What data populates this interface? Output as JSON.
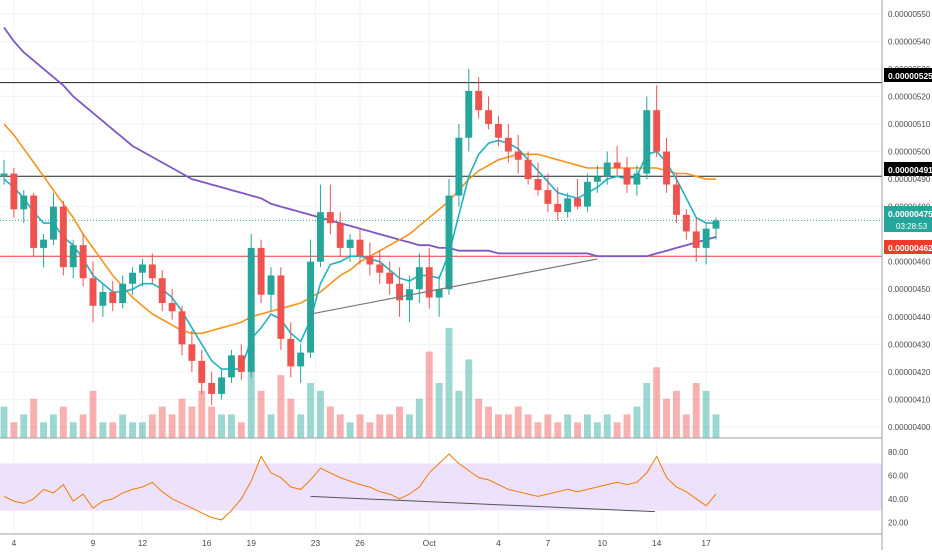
{
  "colors": {
    "bull": "#26a69a",
    "bear": "#ef5350",
    "ema_fast": "#1fb3c2",
    "ma_mid": "#f7931a",
    "ma_slow": "#7e57c2",
    "rsi_line": "#f57c00",
    "rsi_band": "#ede1fb",
    "hline": "#222222",
    "support_line": "#e53935",
    "price_dotted": "#26a69a",
    "trendline": "#777777"
  },
  "price_axis": {
    "ticks": [
      "0.00000550",
      "0.00000540",
      "0.00000530",
      "0.00000520",
      "0.00000510",
      "0.00000500",
      "0.00000490",
      "0.00000480",
      "0.00000460",
      "0.00000450",
      "0.00000440",
      "0.00000430",
      "0.00000420",
      "0.00000410",
      "0.00000400"
    ],
    "tick_values": [
      550,
      540,
      530,
      520,
      510,
      500,
      490,
      480,
      460,
      450,
      440,
      430,
      420,
      410,
      400
    ]
  },
  "rsi_axis": {
    "ticks": [
      "80.00",
      "60.00",
      "40.00",
      "20.00"
    ],
    "tick_values": [
      80,
      60,
      40,
      20
    ],
    "band": [
      30,
      70
    ]
  },
  "time_axis": {
    "labels": [
      "4",
      "9",
      "12",
      "16",
      "19",
      "23",
      "26",
      "Oct",
      "4",
      "7",
      "10",
      "14",
      "17"
    ],
    "label_index": [
      1,
      9,
      14,
      20.5,
      25,
      31.5,
      36,
      43,
      50,
      55,
      60.5,
      66,
      71
    ]
  },
  "price_labels": {
    "resistance_upper": "0.00000525",
    "resistance_lower": "0.00000491",
    "current_price": "0.00000475",
    "countdown": "03:28:53",
    "support": "0.00000462"
  },
  "levels": {
    "resistance_upper": 525,
    "resistance_lower": 491,
    "current_price": 475,
    "support": 462
  },
  "chart_data": {
    "type": "candlestick",
    "price_unit": "1e-8",
    "ylim": [
      396,
      555
    ],
    "candles_per_day": 3,
    "candles": [
      [
        491,
        497,
        488,
        492
      ],
      [
        492,
        494,
        476,
        479
      ],
      [
        479,
        486,
        474,
        484
      ],
      [
        484,
        485,
        462,
        465
      ],
      [
        465,
        470,
        458,
        468
      ],
      [
        468,
        485,
        466,
        480
      ],
      [
        480,
        482,
        455,
        458
      ],
      [
        458,
        468,
        454,
        466
      ],
      [
        466,
        470,
        451,
        454
      ],
      [
        454,
        460,
        438,
        444
      ],
      [
        444,
        452,
        440,
        449
      ],
      [
        449,
        453,
        442,
        445
      ],
      [
        445,
        455,
        443,
        452
      ],
      [
        452,
        458,
        448,
        456
      ],
      [
        456,
        461,
        451,
        459
      ],
      [
        459,
        463,
        452,
        454
      ],
      [
        454,
        457,
        442,
        445
      ],
      [
        445,
        450,
        439,
        442
      ],
      [
        442,
        444,
        426,
        430
      ],
      [
        430,
        435,
        420,
        424
      ],
      [
        424,
        428,
        412,
        416
      ],
      [
        416,
        420,
        408,
        412
      ],
      [
        412,
        421,
        410,
        418
      ],
      [
        418,
        428,
        416,
        426
      ],
      [
        426,
        430,
        417,
        420
      ],
      [
        420,
        470,
        418,
        465
      ],
      [
        465,
        468,
        445,
        448
      ],
      [
        448,
        458,
        442,
        455
      ],
      [
        455,
        458,
        428,
        432
      ],
      [
        432,
        438,
        418,
        422
      ],
      [
        422,
        430,
        416,
        427
      ],
      [
        427,
        468,
        425,
        460
      ],
      [
        460,
        488,
        458,
        478
      ],
      [
        478,
        488,
        470,
        474
      ],
      [
        474,
        478,
        462,
        465
      ],
      [
        465,
        470,
        460,
        468
      ],
      [
        468,
        472,
        459,
        462
      ],
      [
        462,
        467,
        455,
        459
      ],
      [
        459,
        464,
        452,
        456
      ],
      [
        456,
        460,
        448,
        452
      ],
      [
        452,
        458,
        440,
        446
      ],
      [
        446,
        455,
        438,
        450
      ],
      [
        450,
        463,
        445,
        458
      ],
      [
        458,
        465,
        443,
        447
      ],
      [
        447,
        455,
        440,
        450
      ],
      [
        450,
        490,
        448,
        484
      ],
      [
        484,
        510,
        480,
        505
      ],
      [
        505,
        530,
        500,
        522
      ],
      [
        522,
        527,
        512,
        515
      ],
      [
        515,
        520,
        508,
        510
      ],
      [
        510,
        513,
        502,
        505
      ],
      [
        505,
        510,
        496,
        500
      ],
      [
        500,
        506,
        492,
        497
      ],
      [
        497,
        500,
        488,
        490
      ],
      [
        490,
        496,
        484,
        486
      ],
      [
        486,
        492,
        478,
        481
      ],
      [
        481,
        487,
        475,
        478
      ],
      [
        478,
        485,
        476,
        483
      ],
      [
        483,
        490,
        479,
        480
      ],
      [
        480,
        492,
        478,
        489
      ],
      [
        489,
        495,
        485,
        491
      ],
      [
        491,
        500,
        488,
        496
      ],
      [
        496,
        502,
        491,
        494
      ],
      [
        494,
        498,
        485,
        488
      ],
      [
        488,
        495,
        484,
        492
      ],
      [
        492,
        520,
        490,
        515
      ],
      [
        515,
        524,
        498,
        500
      ],
      [
        500,
        505,
        485,
        488
      ],
      [
        488,
        492,
        474,
        477
      ],
      [
        477,
        479,
        468,
        471
      ],
      [
        471,
        476,
        460,
        465
      ],
      [
        465,
        474,
        459,
        472
      ],
      [
        472,
        476,
        468,
        475
      ]
    ],
    "volume": [
      4,
      2,
      3,
      5,
      2,
      3,
      4,
      2,
      3,
      6,
      2,
      2,
      3,
      2,
      2,
      3,
      4,
      3,
      5,
      4,
      6,
      4,
      3,
      3,
      2,
      9,
      6,
      3,
      8,
      5,
      3,
      7,
      6,
      4,
      3,
      2,
      3,
      2,
      3,
      3,
      4,
      3,
      5,
      11,
      7,
      14,
      6,
      10,
      5,
      4,
      3,
      3,
      4,
      3,
      2,
      3,
      2,
      3,
      2,
      3,
      2,
      3,
      2,
      3,
      4,
      7,
      9,
      5,
      6,
      3,
      7,
      6,
      3
    ],
    "ema_fast": [
      490,
      487,
      483,
      478,
      474,
      474,
      469,
      466,
      461,
      455,
      452,
      449,
      449,
      450,
      452,
      452,
      450,
      447,
      442,
      436,
      430,
      424,
      421,
      421,
      421,
      432,
      436,
      441,
      439,
      434,
      431,
      439,
      452,
      459,
      460,
      462,
      462,
      461,
      460,
      457,
      454,
      453,
      455,
      455,
      454,
      463,
      477,
      491,
      499,
      503,
      504,
      503,
      501,
      497,
      493,
      489,
      485,
      484,
      483,
      485,
      487,
      490,
      491,
      490,
      491,
      499,
      500,
      496,
      490,
      483,
      476,
      474,
      474
    ],
    "ma_mid": [
      510,
      506,
      501,
      496,
      491,
      486,
      481,
      476,
      470,
      465,
      460,
      455,
      451,
      447,
      444,
      441,
      439,
      437,
      435,
      434,
      434,
      435,
      436,
      437,
      438,
      440,
      441,
      442,
      443,
      444,
      445,
      447,
      449,
      452,
      455,
      457,
      460,
      462,
      464,
      466,
      468,
      470,
      473,
      476,
      479,
      482,
      486,
      490,
      493,
      495,
      497,
      498,
      499,
      499,
      499,
      498,
      497,
      496,
      495,
      494,
      494,
      494,
      494,
      494,
      494,
      494,
      494,
      493,
      492,
      492,
      491,
      490,
      490
    ],
    "ma_slow": [
      545,
      540,
      536,
      533,
      530,
      527,
      524,
      520,
      517,
      514,
      511,
      508,
      505,
      502,
      500,
      498,
      496,
      494,
      492,
      490,
      489,
      488,
      487,
      486,
      485,
      484,
      483,
      481,
      480,
      479,
      478,
      477,
      476,
      475,
      474,
      473,
      472,
      471,
      470,
      469,
      468,
      467,
      466,
      466,
      465,
      465,
      464,
      464,
      464,
      464,
      463,
      463,
      463,
      463,
      463,
      463,
      463,
      463,
      463,
      463,
      462,
      462,
      462,
      462,
      462,
      462,
      463,
      464,
      465,
      466,
      467,
      468,
      469
    ],
    "rsi": [
      42,
      38,
      36,
      40,
      48,
      45,
      52,
      38,
      44,
      32,
      38,
      40,
      45,
      48,
      50,
      54,
      46,
      40,
      36,
      32,
      28,
      24,
      22,
      30,
      40,
      55,
      76,
      62,
      58,
      50,
      48,
      56,
      66,
      62,
      58,
      55,
      52,
      50,
      46,
      44,
      40,
      44,
      50,
      62,
      70,
      78,
      70,
      64,
      58,
      56,
      52,
      48,
      46,
      44,
      42,
      44,
      46,
      48,
      46,
      48,
      50,
      52,
      54,
      52,
      54,
      62,
      76,
      58,
      50,
      46,
      40,
      34,
      44
    ],
    "rsi_ylim": [
      10,
      90
    ],
    "trendlines": [
      {
        "pane": "price",
        "from": [
          31,
          441
        ],
        "to": [
          60,
          461
        ]
      },
      {
        "pane": "rsi",
        "from": [
          31,
          42
        ],
        "to": [
          63,
          29
        ]
      }
    ]
  }
}
